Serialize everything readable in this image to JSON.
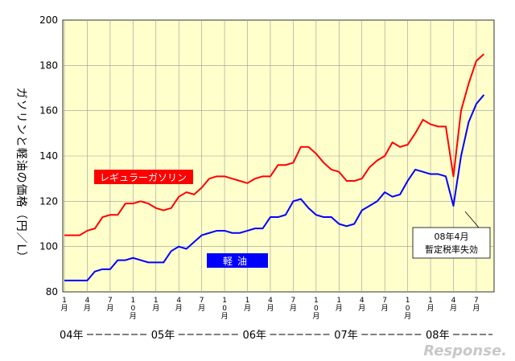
{
  "chart_data": {
    "type": "line",
    "ylabel": "ガソリンと軽油の価格（円／L）",
    "ylim": [
      80,
      200
    ],
    "yticks": [
      80,
      100,
      120,
      140,
      160,
      180,
      200
    ],
    "grid": true,
    "x_month_labels": [
      "1月",
      "4月",
      "7月",
      "10月",
      "1月",
      "4月",
      "7月",
      "10月",
      "1月",
      "4月",
      "7月",
      "10月",
      "1月",
      "4月",
      "7月",
      "10月",
      "1月",
      "4月",
      "7月"
    ],
    "x_year_labels": [
      "04年",
      "05年",
      "06年",
      "07年",
      "08年"
    ],
    "x": [
      "2004-01",
      "2004-02",
      "2004-03",
      "2004-04",
      "2004-05",
      "2004-06",
      "2004-07",
      "2004-08",
      "2004-09",
      "2004-10",
      "2004-11",
      "2004-12",
      "2005-01",
      "2005-02",
      "2005-03",
      "2005-04",
      "2005-05",
      "2005-06",
      "2005-07",
      "2005-08",
      "2005-09",
      "2005-10",
      "2005-11",
      "2005-12",
      "2006-01",
      "2006-02",
      "2006-03",
      "2006-04",
      "2006-05",
      "2006-06",
      "2006-07",
      "2006-08",
      "2006-09",
      "2006-10",
      "2006-11",
      "2006-12",
      "2007-01",
      "2007-02",
      "2007-03",
      "2007-04",
      "2007-05",
      "2007-06",
      "2007-07",
      "2007-08",
      "2007-09",
      "2007-10",
      "2007-11",
      "2007-12",
      "2008-01",
      "2008-02",
      "2008-03",
      "2008-04",
      "2008-05",
      "2008-06",
      "2008-07",
      "2008-08"
    ],
    "series": [
      {
        "name": "レギュラーガソリン",
        "color": "#ff0000",
        "values": [
          105,
          105,
          105,
          107,
          108,
          113,
          114,
          114,
          119,
          119,
          120,
          119,
          117,
          116,
          117,
          122,
          124,
          123,
          126,
          130,
          131,
          131,
          130,
          129,
          128,
          130,
          131,
          131,
          136,
          136,
          137,
          144,
          144,
          141,
          137,
          134,
          133,
          129,
          129,
          130,
          135,
          138,
          140,
          146,
          144,
          145,
          150,
          156,
          154,
          153,
          153,
          131,
          160,
          172,
          182,
          185
        ]
      },
      {
        "name": "軽油",
        "color": "#0000ff",
        "values": [
          85,
          85,
          85,
          85,
          89,
          90,
          90,
          94,
          94,
          95,
          94,
          93,
          93,
          93,
          98,
          100,
          99,
          102,
          105,
          106,
          107,
          107,
          106,
          106,
          107,
          108,
          108,
          113,
          113,
          114,
          120,
          121,
          117,
          114,
          113,
          113,
          110,
          109,
          110,
          116,
          118,
          120,
          124,
          122,
          123,
          129,
          134,
          133,
          132,
          132,
          131,
          118,
          140,
          155,
          163,
          167
        ]
      }
    ],
    "annotation": {
      "lines": [
        "08年4月",
        "暫定税率失効"
      ]
    }
  },
  "colors": {
    "plot_bg": "#ffffcc",
    "grid": "#999999",
    "legend_red": "#ff0000",
    "legend_blue": "#0000ff"
  },
  "watermark": "Response."
}
